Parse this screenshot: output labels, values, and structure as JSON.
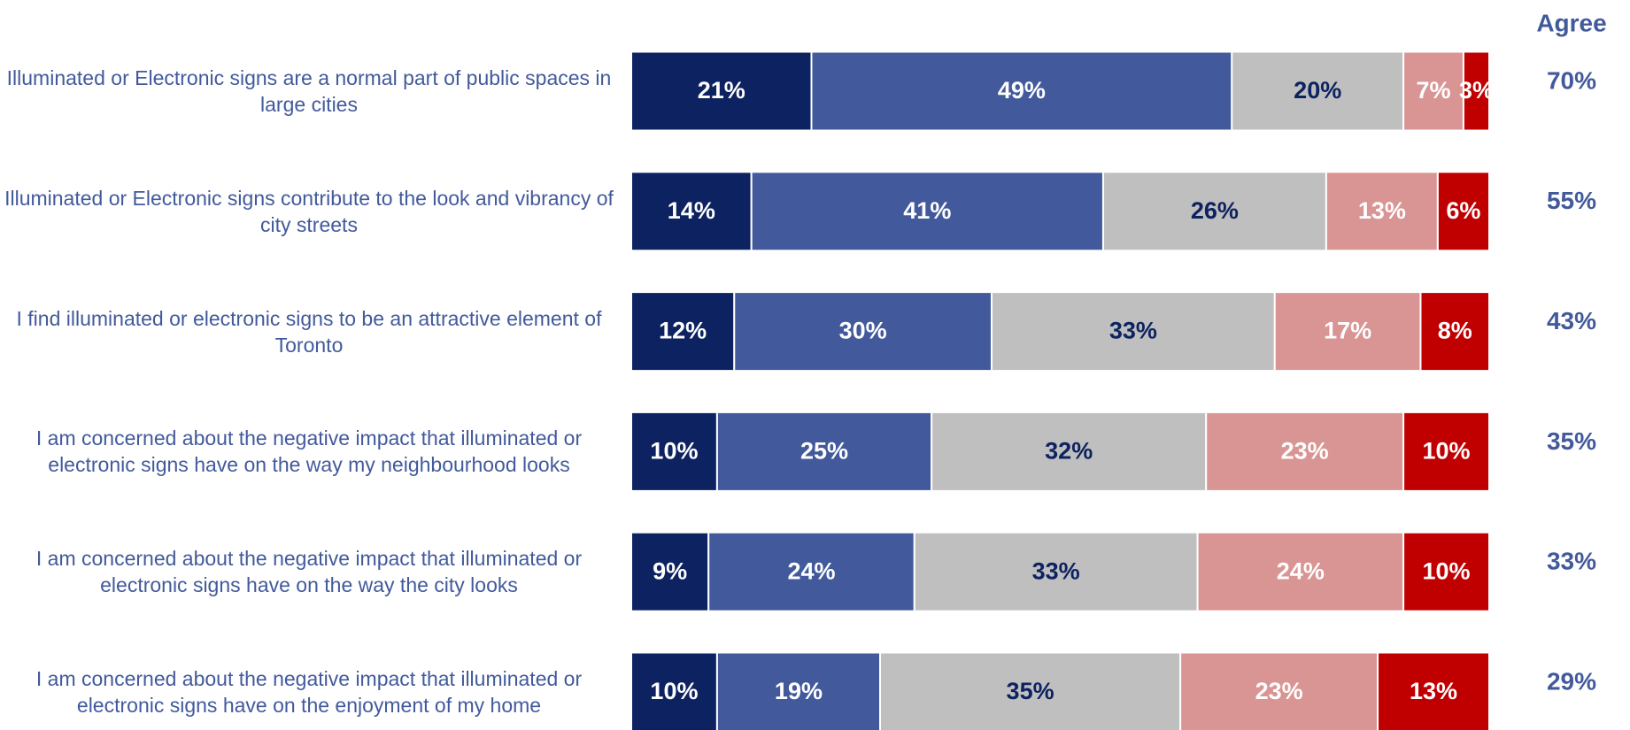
{
  "chart_data": {
    "type": "stacked_bar_horizontal",
    "categories": [
      "Illuminated or Electronic signs are a normal part of public spaces in large cities",
      "Illuminated or Electronic signs contribute to the look and vibrancy of city streets",
      "I find illuminated or electronic signs to be an attractive element of Toronto",
      "I am concerned about the negative impact that illuminated or electronic signs have on the way my neighbourhood looks",
      "I am concerned about the negative impact that illuminated or electronic signs have on the way the city looks",
      "I am concerned about the negative impact that illuminated or electronic signs have on the enjoyment of my home"
    ],
    "xlim": [
      0,
      100
    ],
    "series": [
      {
        "color": "#0d2260",
        "label_color": "#ffffff",
        "values": [
          21,
          14,
          12,
          10,
          9,
          10
        ],
        "value_labels": [
          "21%",
          "14%",
          "12%",
          "10%",
          "9%",
          "10%"
        ]
      },
      {
        "color": "#425a9c",
        "label_color": "#ffffff",
        "values": [
          49,
          41,
          30,
          25,
          24,
          19
        ],
        "value_labels": [
          "49%",
          "41%",
          "30%",
          "25%",
          "24%",
          "19%"
        ]
      },
      {
        "color": "#bfbfbf",
        "label_color": "#0d2260",
        "values": [
          20,
          26,
          33,
          32,
          33,
          35
        ],
        "value_labels": [
          "20%",
          "26%",
          "33%",
          "32%",
          "33%",
          "35%"
        ]
      },
      {
        "color": "#d99594",
        "label_color": "#ffffff",
        "values": [
          7,
          13,
          17,
          23,
          24,
          23
        ],
        "value_labels": [
          "7%",
          "13%",
          "17%",
          "23%",
          "24%",
          "23%"
        ]
      },
      {
        "color": "#c00000",
        "label_color": "#ffffff",
        "values": [
          3,
          6,
          8,
          10,
          10,
          13
        ],
        "value_labels": [
          "3%",
          "6%",
          "8%",
          "10%",
          "10%",
          "13%"
        ]
      }
    ],
    "agree": {
      "title": "Agree",
      "color": "#425a9c",
      "values": [
        70,
        55,
        43,
        35,
        33,
        29
      ],
      "value_labels": [
        "70%",
        "55%",
        "43%",
        "35%",
        "33%",
        "29%"
      ]
    }
  }
}
